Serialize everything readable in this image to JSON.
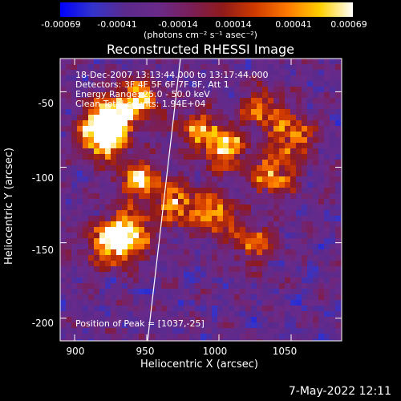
{
  "colors": {
    "stops": [
      "#0000ff",
      "#3333cc",
      "#5b2a8c",
      "#6a2a8a",
      "#7a1f5a",
      "#901a1a",
      "#d03a00",
      "#ff7a00",
      "#ffd000",
      "#ffffff"
    ],
    "text": "#ffffff",
    "limb": "#ffffff"
  },
  "colorbar": {
    "ticks": [
      "-0.00069",
      "-0.00041",
      "-0.00014",
      "0.00014",
      "0.00041",
      "0.00069"
    ],
    "units": "(photons cm⁻² s⁻¹ asec⁻²)"
  },
  "chart_data": {
    "type": "heatmap",
    "title": "Reconstructed RHESSI Image",
    "xlabel": "Heliocentric X (arcsec)",
    "ylabel": "Heliocentric Y (arcsec)",
    "xlim": [
      890,
      1085
    ],
    "ylim": [
      -215,
      -28
    ],
    "xticks": [
      "900",
      "950",
      "1000",
      "1050"
    ],
    "yticks": [
      "-50",
      "-100",
      "-150",
      "-200"
    ],
    "annotations": [
      "18-Dec-2007 13:13:44.000 to 13:17:44.000",
      "Detectors: 3F 4F 5F 6F 7F 8F, Att 1",
      "Energy Range: 25.0 - 50.0 keV",
      "Clean     Total counts: 1.94E+04"
    ],
    "peak_label": "Position of Peak = [1037,-25]",
    "clim": [
      -0.00069,
      0.00069
    ]
  },
  "timestamp": "7-May-2022 12:11"
}
